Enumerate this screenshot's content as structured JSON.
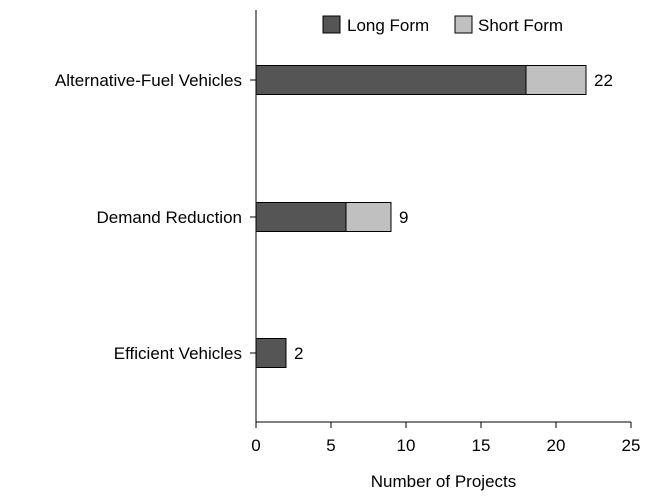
{
  "chart_data": {
    "type": "bar",
    "orientation": "horizontal",
    "stacked": true,
    "categories": [
      "Alternative-Fuel Vehicles",
      "Demand Reduction",
      "Efficient Vehicles"
    ],
    "series": [
      {
        "name": "Long Form",
        "values": [
          18,
          6,
          2
        ],
        "color": "#555555"
      },
      {
        "name": "Short Form",
        "values": [
          4,
          3,
          0
        ],
        "color": "#c0c0c0"
      }
    ],
    "totals": [
      "22",
      "9",
      "2"
    ],
    "xlabel": "Number of Projects",
    "xlim": [
      0,
      25
    ],
    "xticks": [
      "0",
      "5",
      "10",
      "15",
      "20",
      "25"
    ],
    "grid": false,
    "legend_position": "top-right"
  }
}
